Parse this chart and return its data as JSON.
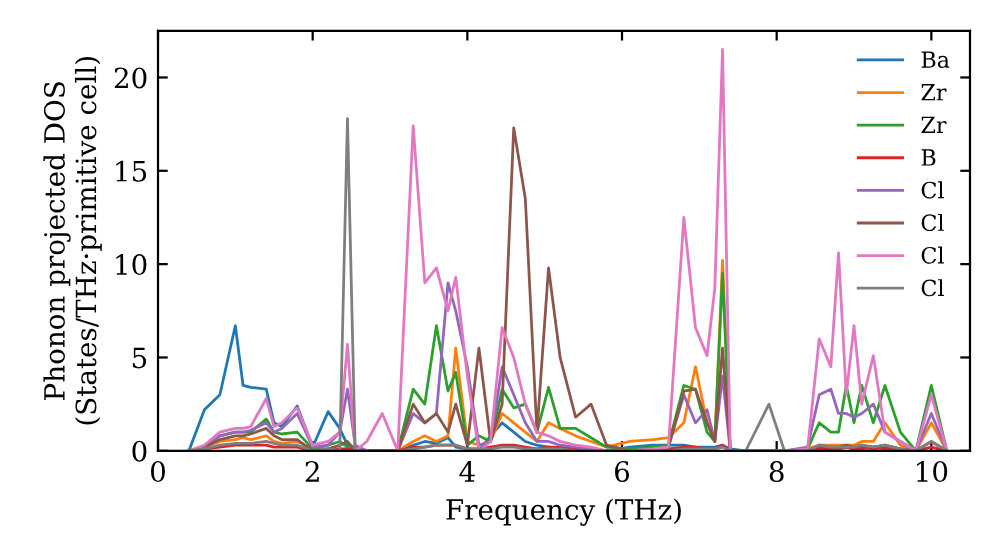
{
  "chart_data": {
    "type": "line",
    "xlabel": "Frequency (THz)",
    "ylabel": "Phonon projected DOS\n(States/THz·primitive cell)",
    "x": [
      0.4,
      0.6,
      0.8,
      1.0,
      1.1,
      1.2,
      1.4,
      1.5,
      1.6,
      1.8,
      2.0,
      2.2,
      2.35,
      2.45,
      2.55,
      2.7,
      2.9,
      3.1,
      3.3,
      3.45,
      3.6,
      3.75,
      3.85,
      4.0,
      4.15,
      4.3,
      4.45,
      4.6,
      4.75,
      4.9,
      5.05,
      5.2,
      5.4,
      5.6,
      5.8,
      6.1,
      6.4,
      6.6,
      6.8,
      6.95,
      7.1,
      7.2,
      7.3,
      7.4,
      7.6,
      7.9,
      8.1,
      8.4,
      8.55,
      8.7,
      8.8,
      8.9,
      9.0,
      9.1,
      9.25,
      9.4,
      9.6,
      9.8,
      10.0,
      10.2
    ],
    "series": [
      {
        "name": "Ba",
        "color": "#1f77b4",
        "values": [
          0,
          2.2,
          3.0,
          6.7,
          3.5,
          3.4,
          3.3,
          1.5,
          1.3,
          2.4,
          0.2,
          2.1,
          1.2,
          0.3,
          0.2,
          0,
          0,
          0,
          0.3,
          0.5,
          0.4,
          0.7,
          0.2,
          0.1,
          0,
          0.8,
          1.5,
          1.0,
          0.5,
          0.3,
          0.2,
          0.1,
          0,
          0,
          0,
          0.2,
          0.3,
          0.3,
          0.3,
          0.2,
          0.2,
          0.2,
          0.3,
          0.1,
          0,
          0,
          0,
          0.1,
          0.2,
          0.1,
          0.1,
          0.2,
          0.1,
          0.1,
          0.2,
          0.1,
          0,
          null,
          null,
          null
        ]
      },
      {
        "name": "Zr",
        "color": "#ff7f0e",
        "values": [
          0,
          0.2,
          0.5,
          0.6,
          0.7,
          0.6,
          0.8,
          0.5,
          0.4,
          0.5,
          0.1,
          0.1,
          0.1,
          0,
          0,
          0,
          0,
          0,
          0.5,
          0.8,
          0.5,
          0.8,
          5.5,
          0.5,
          0.3,
          0.5,
          2.0,
          1.5,
          1.0,
          0.5,
          1.5,
          1.2,
          0.8,
          0.5,
          0.2,
          0.5,
          0.6,
          0.7,
          1.5,
          4.5,
          1.5,
          0.5,
          10.2,
          0,
          0,
          0,
          0,
          0.1,
          0.3,
          0.3,
          0.3,
          0.3,
          0.3,
          0.5,
          0.5,
          1.5,
          0.3,
          0,
          1.5,
          0
        ]
      },
      {
        "name": "Zr",
        "color": "#2ca02c",
        "values": [
          null,
          null,
          0.8,
          1.0,
          1.0,
          1.0,
          1.7,
          1.0,
          0.9,
          1.0,
          0.1,
          0.3,
          0.5,
          0.2,
          0,
          0,
          0,
          0,
          3.3,
          2.5,
          6.7,
          3.2,
          4.2,
          0.3,
          0.8,
          0.5,
          3.3,
          2.3,
          2.5,
          1.0,
          3.4,
          1.2,
          1.2,
          0.7,
          0.2,
          0.1,
          0.2,
          0.3,
          3.5,
          3.3,
          1.0,
          0.5,
          9.5,
          0,
          0,
          0,
          0,
          0.1,
          1.5,
          1.0,
          1.0,
          3.5,
          1.5,
          3.5,
          1.5,
          3.5,
          1.0,
          0,
          3.5,
          0
        ]
      },
      {
        "name": "B",
        "color": "#d62728",
        "values": [
          0,
          0.1,
          0.2,
          0.3,
          0.3,
          0.3,
          0.3,
          0.2,
          0.2,
          0.2,
          0,
          0,
          0.1,
          0.1,
          0,
          0,
          0,
          0,
          0.2,
          0.2,
          0.3,
          0.3,
          0.3,
          0.1,
          0.1,
          0.2,
          0.3,
          0.3,
          0.2,
          0.1,
          0.2,
          0.2,
          0.1,
          0.1,
          0,
          0,
          0,
          0.1,
          0.2,
          0.2,
          0.1,
          0.1,
          0.3,
          0,
          0,
          0,
          0,
          0,
          0.1,
          0.1,
          0.1,
          0.2,
          0.1,
          0.2,
          0.1,
          0.2,
          0.1,
          0,
          0.2,
          0
        ]
      },
      {
        "name": "Cl",
        "color": "#9467bd",
        "values": [
          0,
          0.2,
          0.8,
          1.0,
          1.0,
          1.1,
          1.5,
          1.0,
          1.2,
          2.0,
          0.2,
          0.3,
          1.0,
          3.3,
          0.3,
          0,
          0,
          0,
          2.0,
          1.5,
          2.0,
          9.0,
          7.5,
          4.5,
          0.3,
          0.5,
          4.5,
          3.0,
          1.5,
          0.5,
          0.5,
          0.3,
          0.2,
          0.1,
          0,
          0,
          0.1,
          0.2,
          3.0,
          1.5,
          2.2,
          0.5,
          4.0,
          0,
          0,
          0,
          0,
          0.2,
          3.0,
          3.3,
          2.0,
          2.0,
          1.8,
          2.0,
          2.5,
          1.0,
          0.5,
          0,
          2.0,
          0
        ]
      },
      {
        "name": "Cl",
        "color": "#8c564b",
        "values": [
          0,
          0.2,
          0.6,
          0.8,
          0.8,
          0.9,
          1.2,
          0.8,
          0.6,
          0.6,
          0,
          0.1,
          0.3,
          0.5,
          0,
          0,
          0,
          0,
          2.5,
          1.5,
          2.0,
          1.0,
          2.5,
          0.3,
          5.5,
          0.5,
          2.5,
          17.3,
          13.5,
          1.0,
          9.8,
          5.0,
          1.8,
          2.5,
          0.3,
          0,
          0,
          0.2,
          3.2,
          3.3,
          1.5,
          0.5,
          5.5,
          0,
          0,
          0,
          0,
          0,
          0.3,
          0.2,
          0.2,
          0.3,
          0.2,
          0.3,
          0.2,
          0.3,
          0.1,
          0,
          0.5,
          0
        ]
      },
      {
        "name": "Cl",
        "color": "#e377c2",
        "values": [
          0,
          0.3,
          1.0,
          1.2,
          1.2,
          1.3,
          2.8,
          1.3,
          1.5,
          2.3,
          0.3,
          0.5,
          1.0,
          5.7,
          0,
          0.5,
          2.0,
          0,
          17.4,
          9.0,
          9.8,
          7.5,
          9.3,
          4.0,
          0,
          0.5,
          6.6,
          5.0,
          2.5,
          1.0,
          0.8,
          0.5,
          0.3,
          0.2,
          0,
          0,
          0.1,
          0.2,
          12.5,
          6.6,
          5.1,
          8.7,
          21.5,
          0,
          0,
          0,
          0,
          0.1,
          6.0,
          4.5,
          10.6,
          3.0,
          6.7,
          2.5,
          5.1,
          1.0,
          0.5,
          0,
          3.0,
          0
        ]
      },
      {
        "name": "Cl",
        "color": "#7f7f7f",
        "values": [
          0,
          0.1,
          0.3,
          0.4,
          0.4,
          0.4,
          0.5,
          0.4,
          0.3,
          0.3,
          0,
          0.1,
          0,
          17.8,
          0,
          0,
          0,
          0,
          0.1,
          0.2,
          0.3,
          0.3,
          0.3,
          0.1,
          0.1,
          0.1,
          0.2,
          0.2,
          0.1,
          0.1,
          0.1,
          0.1,
          0,
          0,
          0,
          0,
          0,
          0,
          0.1,
          0.1,
          0.1,
          0.1,
          0.2,
          0,
          0,
          2.5,
          0,
          0,
          0.3,
          0.2,
          0.2,
          0.2,
          0.2,
          0.3,
          0.2,
          0.3,
          0.1,
          0,
          0.5,
          0
        ]
      }
    ],
    "xlim": [
      0,
      10.5
    ],
    "ylim": [
      0,
      22.5
    ],
    "xticks": [
      0,
      2,
      4,
      6,
      8,
      10
    ],
    "yticks": [
      0,
      5,
      10,
      15,
      20
    ],
    "legend": "top right",
    "grid": false
  }
}
